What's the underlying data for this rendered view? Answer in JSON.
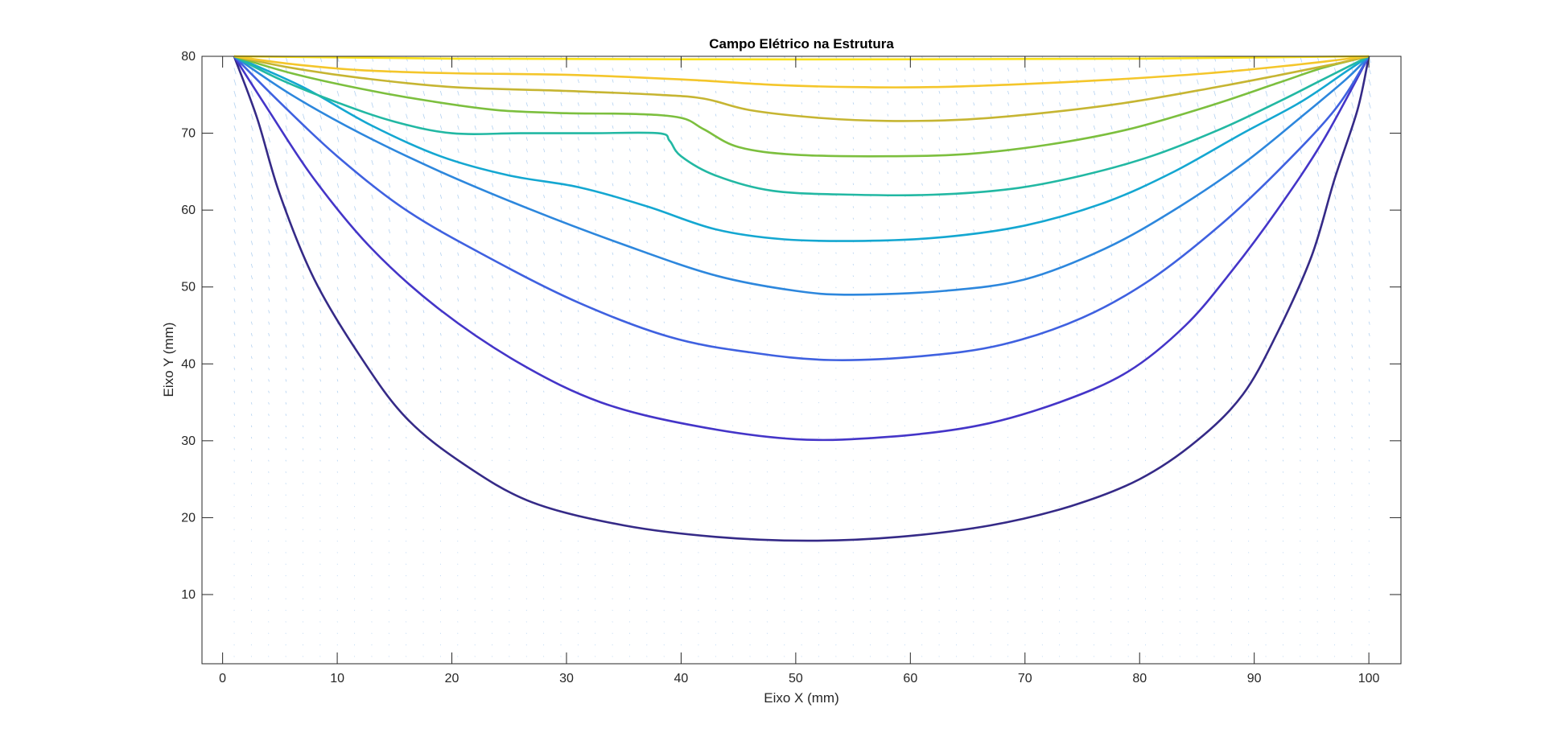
{
  "chart_data": {
    "type": "contour",
    "title": "Campo Elétrico na Estrutura",
    "xlabel": "Eixo X (mm)",
    "ylabel": "Eixo Y (mm)",
    "xlim": [
      -1.8,
      102.8
    ],
    "ylim": [
      1,
      80
    ],
    "xticks": [
      0,
      10,
      20,
      30,
      40,
      50,
      60,
      70,
      80,
      90,
      100
    ],
    "yticks": [
      10,
      20,
      30,
      40,
      50,
      60,
      70,
      80
    ],
    "grid": false,
    "quiver": true,
    "series": [
      {
        "color": "#352a87",
        "points": [
          [
            1,
            80
          ],
          [
            3,
            72
          ],
          [
            5,
            62
          ],
          [
            8,
            51
          ],
          [
            12,
            41
          ],
          [
            16,
            33
          ],
          [
            21,
            27
          ],
          [
            27,
            22
          ],
          [
            35,
            19
          ],
          [
            43,
            17.5
          ],
          [
            51,
            17
          ],
          [
            59,
            17.5
          ],
          [
            67,
            19
          ],
          [
            74,
            21.5
          ],
          [
            80,
            25
          ],
          [
            85,
            30
          ],
          [
            89,
            36
          ],
          [
            92,
            44
          ],
          [
            95,
            54
          ],
          [
            97,
            64
          ],
          [
            99,
            73
          ],
          [
            100,
            80
          ]
        ]
      },
      {
        "color": "#4435c8",
        "points": [
          [
            1,
            80
          ],
          [
            4,
            73
          ],
          [
            8,
            64
          ],
          [
            13,
            55
          ],
          [
            19,
            47
          ],
          [
            26,
            40
          ],
          [
            33,
            35
          ],
          [
            41,
            32
          ],
          [
            50,
            30.2
          ],
          [
            58,
            30.5
          ],
          [
            66,
            32
          ],
          [
            73,
            35
          ],
          [
            79,
            39
          ],
          [
            84,
            45
          ],
          [
            88,
            52
          ],
          [
            92,
            60
          ],
          [
            96,
            69
          ],
          [
            100,
            80
          ]
        ]
      },
      {
        "color": "#3f61e0",
        "points": [
          [
            1,
            80
          ],
          [
            5,
            74
          ],
          [
            10,
            67
          ],
          [
            16,
            60
          ],
          [
            23,
            54
          ],
          [
            31,
            48
          ],
          [
            39,
            43.5
          ],
          [
            46,
            41.5
          ],
          [
            53,
            40.5
          ],
          [
            61,
            41
          ],
          [
            68,
            42.5
          ],
          [
            75,
            46
          ],
          [
            81,
            51
          ],
          [
            87,
            58
          ],
          [
            92,
            65
          ],
          [
            97,
            73
          ],
          [
            100,
            80
          ]
        ]
      },
      {
        "color": "#2d87dd",
        "points": [
          [
            1,
            80
          ],
          [
            6,
            75
          ],
          [
            12,
            70
          ],
          [
            19,
            65
          ],
          [
            27,
            60
          ],
          [
            35,
            55.5
          ],
          [
            43,
            51.5
          ],
          [
            50,
            49.5
          ],
          [
            55,
            49
          ],
          [
            63,
            49.5
          ],
          [
            70,
            51
          ],
          [
            77,
            55
          ],
          [
            83,
            60
          ],
          [
            89,
            66
          ],
          [
            94,
            72
          ],
          [
            98,
            77
          ],
          [
            100,
            80
          ]
        ]
      },
      {
        "color": "#14a7d1",
        "points": [
          [
            1,
            80
          ],
          [
            7,
            76
          ],
          [
            13,
            71
          ],
          [
            19,
            67
          ],
          [
            25,
            64.5
          ],
          [
            31,
            63
          ],
          [
            37,
            60.5
          ],
          [
            43,
            57.5
          ],
          [
            49,
            56.2
          ],
          [
            56,
            56
          ],
          [
            63,
            56.5
          ],
          [
            70,
            58
          ],
          [
            77,
            61
          ],
          [
            83,
            65
          ],
          [
            89,
            70
          ],
          [
            94,
            74
          ],
          [
            98,
            78
          ],
          [
            100,
            80
          ]
        ]
      },
      {
        "color": "#22b8a3",
        "points": [
          [
            1,
            80
          ],
          [
            5,
            77
          ],
          [
            10,
            74
          ],
          [
            15,
            71.5
          ],
          [
            20,
            70
          ],
          [
            26,
            70
          ],
          [
            32,
            70
          ],
          [
            38,
            70
          ],
          [
            39,
            69
          ],
          [
            40,
            67
          ],
          [
            43,
            64.5
          ],
          [
            48,
            62.5
          ],
          [
            55,
            62
          ],
          [
            62,
            62
          ],
          [
            69,
            62.8
          ],
          [
            75,
            64.5
          ],
          [
            81,
            67
          ],
          [
            87,
            70.5
          ],
          [
            92,
            74
          ],
          [
            96,
            77
          ],
          [
            100,
            80
          ]
        ]
      },
      {
        "color": "#7cbf3e",
        "points": [
          [
            1,
            80
          ],
          [
            6,
            77.8
          ],
          [
            12,
            75.8
          ],
          [
            18,
            74.2
          ],
          [
            24,
            73
          ],
          [
            30,
            72.6
          ],
          [
            36,
            72.5
          ],
          [
            40,
            72
          ],
          [
            42,
            70.5
          ],
          [
            45,
            68.2
          ],
          [
            50,
            67.2
          ],
          [
            58,
            67
          ],
          [
            65,
            67.3
          ],
          [
            72,
            68.5
          ],
          [
            79,
            70.5
          ],
          [
            86,
            73.5
          ],
          [
            92,
            76.5
          ],
          [
            96,
            78.5
          ],
          [
            100,
            80
          ]
        ]
      },
      {
        "color": "#c6b532",
        "points": [
          [
            1,
            80
          ],
          [
            6,
            78.5
          ],
          [
            12,
            77.2
          ],
          [
            20,
            76
          ],
          [
            30,
            75.5
          ],
          [
            38,
            75
          ],
          [
            42,
            74.5
          ],
          [
            46,
            73
          ],
          [
            52,
            72
          ],
          [
            58,
            71.6
          ],
          [
            65,
            71.8
          ],
          [
            72,
            72.7
          ],
          [
            79,
            74
          ],
          [
            86,
            75.8
          ],
          [
            92,
            77.5
          ],
          [
            97,
            79
          ],
          [
            100,
            80
          ]
        ]
      },
      {
        "color": "#f4c62b",
        "points": [
          [
            1,
            80
          ],
          [
            6,
            79
          ],
          [
            12,
            78.2
          ],
          [
            20,
            77.8
          ],
          [
            30,
            77.6
          ],
          [
            40,
            77
          ],
          [
            48,
            76.3
          ],
          [
            55,
            76
          ],
          [
            62,
            76
          ],
          [
            70,
            76.4
          ],
          [
            78,
            77
          ],
          [
            86,
            77.8
          ],
          [
            93,
            78.8
          ],
          [
            100,
            80
          ]
        ]
      },
      {
        "color": "#f9e11a",
        "points": [
          [
            1,
            80
          ],
          [
            20,
            79.7
          ],
          [
            50,
            79.6
          ],
          [
            80,
            79.7
          ],
          [
            100,
            80
          ]
        ]
      }
    ]
  }
}
